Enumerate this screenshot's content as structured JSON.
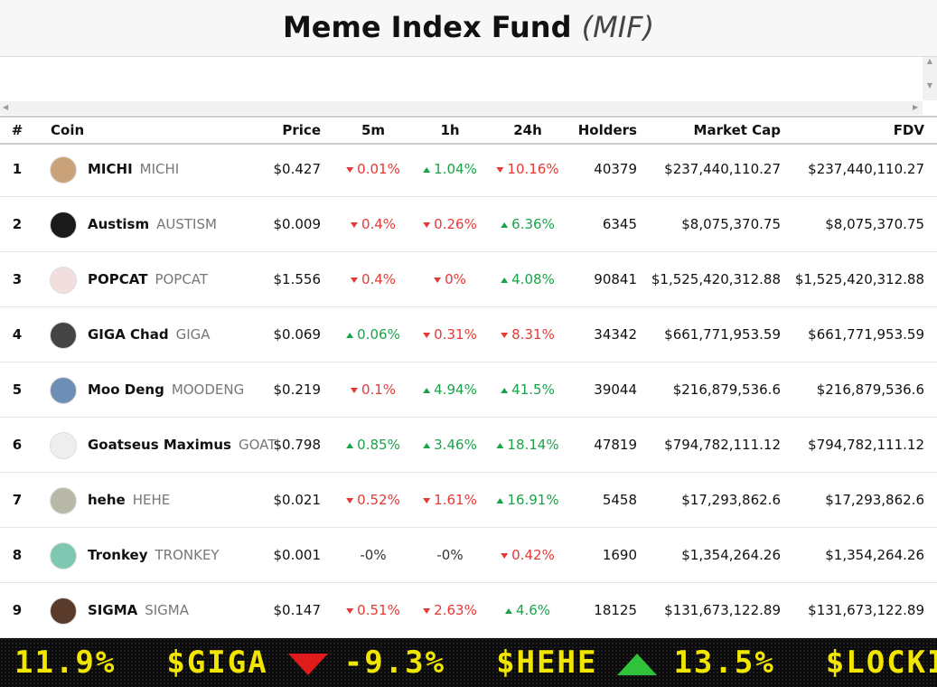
{
  "header": {
    "title": "Meme Index Fund",
    "ticker": "(MIF)"
  },
  "table": {
    "columns": [
      "#",
      "Coin",
      "Price",
      "5m",
      "1h",
      "24h",
      "Holders",
      "Market Cap",
      "FDV"
    ],
    "rows": [
      {
        "rank": 1,
        "name": "MICHI",
        "symbol": "MICHI",
        "price": "$0.427",
        "m5": {
          "text": "0.01%",
          "trend": "down"
        },
        "h1": {
          "text": "1.04%",
          "trend": "up"
        },
        "h24": {
          "text": "10.16%",
          "trend": "down"
        },
        "holders": 40379,
        "market_cap": "$237,440,110.27",
        "fdv": "$237,440,110.27"
      },
      {
        "rank": 2,
        "name": "Austism",
        "symbol": "AUSTISM",
        "price": "$0.009",
        "m5": {
          "text": "0.4%",
          "trend": "down"
        },
        "h1": {
          "text": "0.26%",
          "trend": "down"
        },
        "h24": {
          "text": "6.36%",
          "trend": "up"
        },
        "holders": 6345,
        "market_cap": "$8,075,370.75",
        "fdv": "$8,075,370.75"
      },
      {
        "rank": 3,
        "name": "POPCAT",
        "symbol": "POPCAT",
        "price": "$1.556",
        "m5": {
          "text": "0.4%",
          "trend": "down"
        },
        "h1": {
          "text": "0%",
          "trend": "down"
        },
        "h24": {
          "text": "4.08%",
          "trend": "up"
        },
        "holders": 90841,
        "market_cap": "$1,525,420,312.88",
        "fdv": "$1,525,420,312.88"
      },
      {
        "rank": 4,
        "name": "GIGA Chad",
        "symbol": "GIGA",
        "price": "$0.069",
        "m5": {
          "text": "0.06%",
          "trend": "up"
        },
        "h1": {
          "text": "0.31%",
          "trend": "down"
        },
        "h24": {
          "text": "8.31%",
          "trend": "down"
        },
        "holders": 34342,
        "market_cap": "$661,771,953.59",
        "fdv": "$661,771,953.59"
      },
      {
        "rank": 5,
        "name": "Moo Deng",
        "symbol": "MOODENG",
        "price": "$0.219",
        "m5": {
          "text": "0.1%",
          "trend": "down"
        },
        "h1": {
          "text": "4.94%",
          "trend": "up"
        },
        "h24": {
          "text": "41.5%",
          "trend": "up"
        },
        "holders": 39044,
        "market_cap": "$216,879,536.6",
        "fdv": "$216,879,536.6"
      },
      {
        "rank": 6,
        "name": "Goatseus Maximus",
        "symbol": "GOAT",
        "price": "$0.798",
        "m5": {
          "text": "0.85%",
          "trend": "up"
        },
        "h1": {
          "text": "3.46%",
          "trend": "up"
        },
        "h24": {
          "text": "18.14%",
          "trend": "up"
        },
        "holders": 47819,
        "market_cap": "$794,782,111.12",
        "fdv": "$794,782,111.12"
      },
      {
        "rank": 7,
        "name": "hehe",
        "symbol": "HEHE",
        "price": "$0.021",
        "m5": {
          "text": "0.52%",
          "trend": "down"
        },
        "h1": {
          "text": "1.61%",
          "trend": "down"
        },
        "h24": {
          "text": "16.91%",
          "trend": "up"
        },
        "holders": 5458,
        "market_cap": "$17,293,862.6",
        "fdv": "$17,293,862.6"
      },
      {
        "rank": 8,
        "name": "Tronkey",
        "symbol": "TRONKEY",
        "price": "$0.001",
        "m5": {
          "text": "-0%",
          "trend": null
        },
        "h1": {
          "text": "-0%",
          "trend": null
        },
        "h24": {
          "text": "0.42%",
          "trend": "down"
        },
        "holders": 1690,
        "market_cap": "$1,354,264.26",
        "fdv": "$1,354,264.26"
      },
      {
        "rank": 9,
        "name": "SIGMA",
        "symbol": "SIGMA",
        "price": "$0.147",
        "m5": {
          "text": "0.51%",
          "trend": "down"
        },
        "h1": {
          "text": "2.63%",
          "trend": "down"
        },
        "h24": {
          "text": "4.6%",
          "trend": "up"
        },
        "holders": 18125,
        "market_cap": "$131,673,122.89",
        "fdv": "$131,673,122.89"
      }
    ]
  },
  "ticker": {
    "lead": "11.9%",
    "items": [
      {
        "symbol": "$GIGA",
        "trend": "down",
        "change": "-9.3%"
      },
      {
        "symbol": "$HEHE",
        "trend": "up",
        "change": "13.5%"
      },
      {
        "symbol": "$LOCKI"
      }
    ]
  }
}
